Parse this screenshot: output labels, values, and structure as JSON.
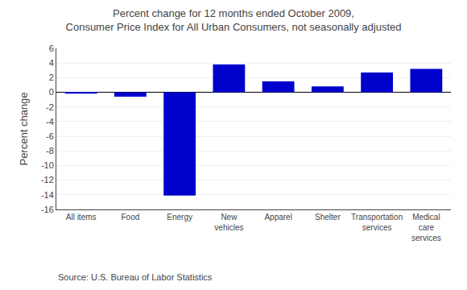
{
  "chart_data": {
    "type": "bar",
    "title": "Percent change for 12 months ended October 2009,\nConsumer Price Index for All Urban Consumers, not seasonally adjusted",
    "ylabel": "Percent change",
    "categories": [
      "All items",
      "Food",
      "Energy",
      "New\nvehicles",
      "Apparel",
      "Shelter",
      "Transportation\nservices",
      "Medical\ncare\nservices"
    ],
    "values": [
      -0.2,
      -0.6,
      -14.1,
      3.8,
      1.5,
      0.8,
      2.7,
      3.2
    ],
    "color": "#0000CC",
    "ylim": [
      -16,
      6
    ],
    "yticks": [
      -16,
      -14,
      -12,
      -10,
      -8,
      -6,
      -4,
      -2,
      0,
      2,
      4,
      6
    ],
    "grid": true,
    "annotations": [
      "Source: U.S. Bureau of Labor Statistics"
    ]
  }
}
